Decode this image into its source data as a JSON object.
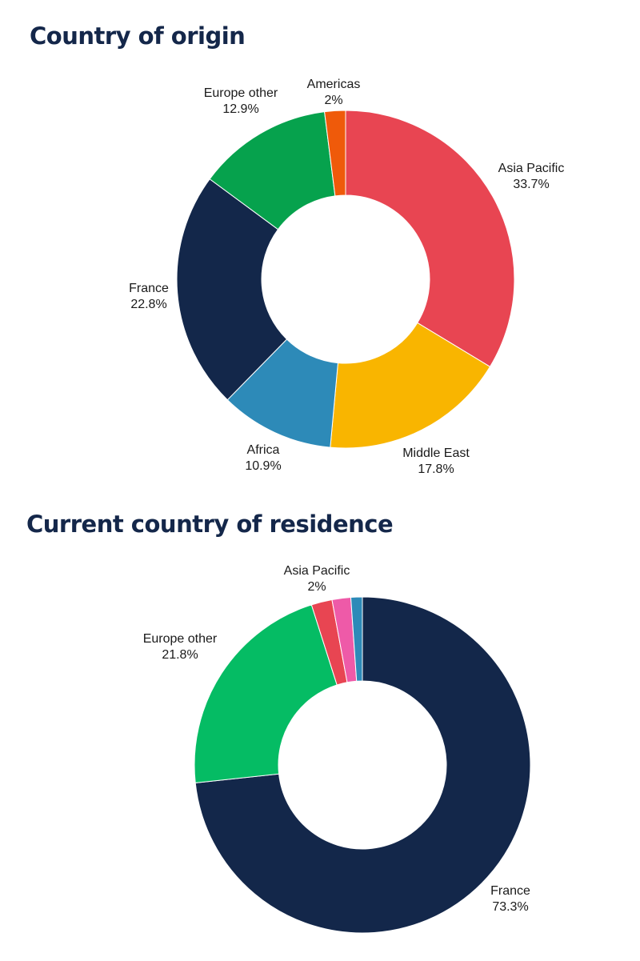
{
  "chart_data": [
    {
      "type": "pie",
      "donut": true,
      "title": "Country of origin",
      "slices": [
        {
          "name": "Asia Pacific",
          "value": 33.7,
          "label": "33.7%",
          "color": "#e84552"
        },
        {
          "name": "Middle East",
          "value": 17.8,
          "label": "17.8%",
          "color": "#f9b500"
        },
        {
          "name": "Africa",
          "value": 10.9,
          "label": "10.9%",
          "color": "#2d8ab8"
        },
        {
          "name": "France",
          "value": 22.8,
          "label": "22.8%",
          "color": "#13274a"
        },
        {
          "name": "Europe other",
          "value": 12.9,
          "label": "12.9%",
          "color": "#06a24d"
        },
        {
          "name": "Americas",
          "value": 2,
          "label": "2%",
          "color": "#ef5a0a"
        }
      ]
    },
    {
      "type": "pie",
      "donut": true,
      "title": "Current country of residence",
      "slices": [
        {
          "name": "France",
          "value": 73.3,
          "label": "73.3%",
          "color": "#13274a"
        },
        {
          "name": "Europe other",
          "value": 21.8,
          "label": "21.8%",
          "color": "#05bc64"
        },
        {
          "name": "Asia Pacific",
          "value": 2,
          "label": "2%",
          "color": "#e84552"
        },
        {
          "name": "",
          "value": 1.8,
          "label": "",
          "color": "#ee5aa8"
        },
        {
          "name": "",
          "value": 1.1,
          "label": "",
          "color": "#2d8ab8"
        }
      ]
    }
  ]
}
